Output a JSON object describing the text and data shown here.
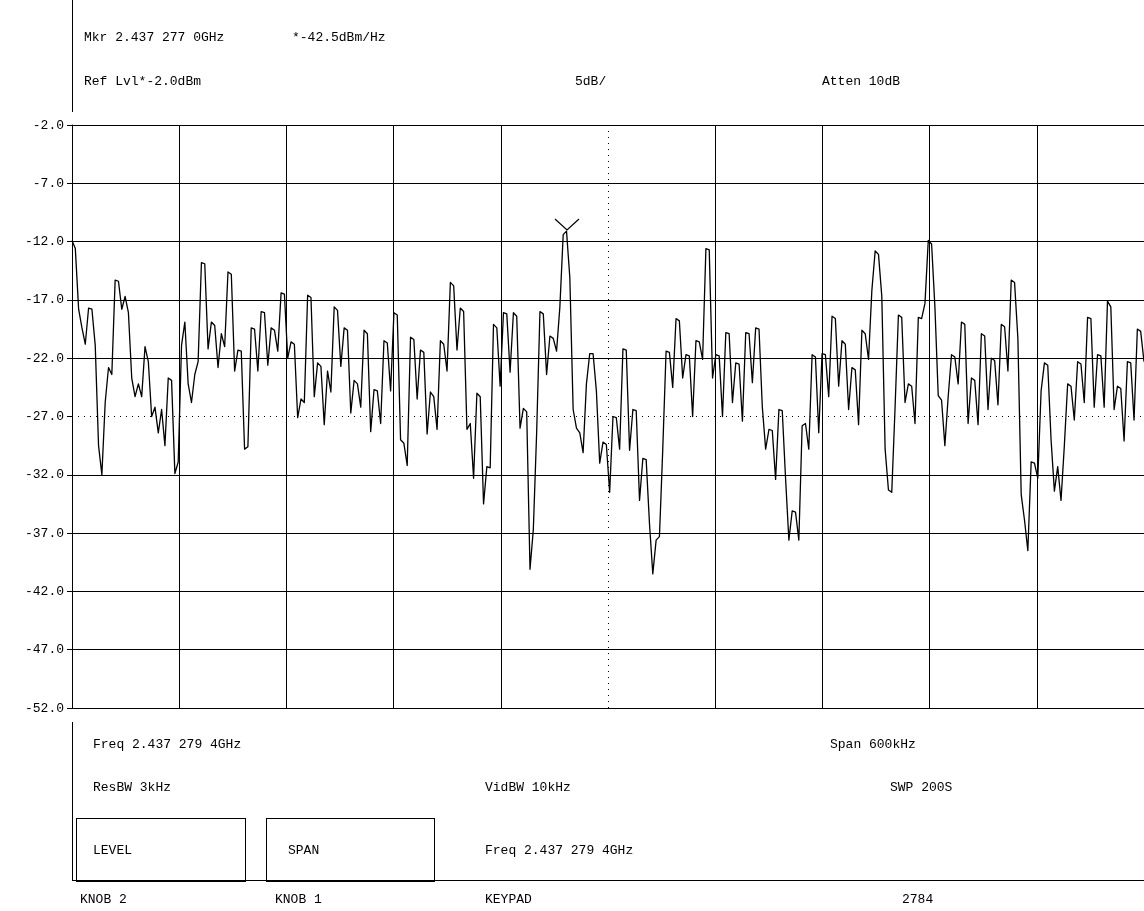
{
  "chart_data": {
    "type": "line",
    "values": [
      -11.9,
      -12.6,
      -17.8,
      -19.4,
      -20.8,
      -17.7,
      -17.8,
      -20.9,
      -29.5,
      -32,
      -25.8,
      -22.8,
      -23.4,
      -15.3,
      -15.4,
      -17.8,
      -16.7,
      -18.1,
      -23.7,
      -25.3,
      -24.2,
      -25.3,
      -21,
      -22.3,
      -27,
      -26.2,
      -28.4,
      -26.4,
      -29.5,
      -23.7,
      -23.9,
      -31.9,
      -30.9,
      -20.9,
      -18.9,
      -24.2,
      -25.8,
      -23.4,
      -22.3,
      -13.8,
      -13.9,
      -21.2,
      -18.9,
      -19.2,
      -22.8,
      -19.9,
      -21,
      -14.6,
      -14.8,
      -23.1,
      -21.3,
      -21.4,
      -29.8,
      -29.6,
      -19.4,
      -19.5,
      -23.1,
      -18,
      -18.1,
      -22.6,
      -19.4,
      -19.6,
      -21.4,
      -16.4,
      -16.5,
      -22,
      -20.6,
      -20.8,
      -27.1,
      -25.5,
      -25.8,
      -16.6,
      -16.8,
      -25.3,
      -22.4,
      -22.7,
      -27.7,
      -23.1,
      -24.9,
      -17.6,
      -17.9,
      -22.7,
      -19.4,
      -19.6,
      -26.7,
      -23.9,
      -24.2,
      -26.2,
      -19.6,
      -19.9,
      -28.3,
      -24.7,
      -24.8,
      -27.6,
      -20.5,
      -20.7,
      -24.8,
      -18.1,
      -18.3,
      -29,
      -29.3,
      -31.2,
      -20.2,
      -20.4,
      -25.5,
      -21.3,
      -21.5,
      -28.5,
      -24.9,
      -25.3,
      -28.1,
      -20.5,
      -20.8,
      -23.1,
      -15.5,
      -15.8,
      -21.3,
      -17.7,
      -18,
      -28.1,
      -27.6,
      -32.3,
      -25,
      -25.3,
      -34.5,
      -31.3,
      -31.4,
      -19.1,
      -19.4,
      -24.4,
      -18.1,
      -18.2,
      -23.2,
      -18.1,
      -18.4,
      -28,
      -26.3,
      -26.6,
      -40.1,
      -36.7,
      -28.4,
      -18,
      -18.2,
      -23.4,
      -20.1,
      -20.3,
      -21.4,
      -17.6,
      -11.4,
      -11.1,
      -15.1,
      -26.4,
      -28,
      -28.4,
      -30.1,
      -24.2,
      -21.6,
      -21.6,
      -24.8,
      -31,
      -29.2,
      -29.4,
      -33.5,
      -27,
      -27.1,
      -29.8,
      -21.2,
      -21.3,
      -29.9,
      -26.4,
      -26.5,
      -34.2,
      -30.6,
      -30.7,
      -36.2,
      -40.5,
      -37.6,
      -37.3,
      -29.8,
      -21.4,
      -21.5,
      -24.5,
      -18.6,
      -18.8,
      -23.7,
      -21.7,
      -21.8,
      -27,
      -20.5,
      -20.6,
      -22.1,
      -12.6,
      -12.7,
      -23.7,
      -21.7,
      -21.8,
      -27,
      -19.8,
      -19.9,
      -25.8,
      -22.4,
      -22.5,
      -27.4,
      -19.8,
      -19.9,
      -24.1,
      -19.4,
      -19.5,
      -26.2,
      -29.8,
      -28.1,
      -28.2,
      -32.4,
      -26.4,
      -26.5,
      -32.3,
      -37.6,
      -35.1,
      -35.2,
      -37.6,
      -27.8,
      -27.6,
      -29.8,
      -21.7,
      -21.9,
      -28.4,
      -21.6,
      -21.7,
      -25.3,
      -18.4,
      -18.6,
      -24.4,
      -20.5,
      -20.8,
      -26.4,
      -22.8,
      -23,
      -27.7,
      -19.6,
      -19.9,
      -22.1,
      -16.2,
      -12.8,
      -13.1,
      -16.7,
      -29.8,
      -33.3,
      -33.5,
      -26.2,
      -18.3,
      -18.5,
      -25.8,
      -24.2,
      -24.4,
      -27.6,
      -18.5,
      -18.6,
      -17.3,
      -11.9,
      -12.2,
      -17.6,
      -25.2,
      -25.6,
      -29.5,
      -25.3,
      -21.7,
      -21.9,
      -24.2,
      -18.9,
      -19.1,
      -27.6,
      -23.7,
      -23.9,
      -27.7,
      -19.9,
      -20.1,
      -26.4,
      -22,
      -22.2,
      -26,
      -19.1,
      -19.3,
      -23.1,
      -15.3,
      -15.5,
      -20.3,
      -33.7,
      -35.9,
      -38.5,
      -30.9,
      -31,
      -32.3,
      -24.8,
      -22.4,
      -22.6,
      -29,
      -33.4,
      -31.3,
      -34.2,
      -29.5,
      -24.2,
      -24.4,
      -27.3,
      -22.3,
      -22.5,
      -25.8,
      -18.5,
      -18.6,
      -26.2,
      -21.7,
      -21.8,
      -26.2,
      -17.1,
      -17.6,
      -26.4,
      -24.4,
      -24.6,
      -29.1,
      -22.3,
      -22.4,
      -27.3,
      -19.5,
      -19.7,
      -22.3
    ],
    "color": "#000000",
    "marker": "none",
    "line_style": "solid",
    "grid": true,
    "tick_labels": "y",
    "ylim": [
      -52,
      -2
    ],
    "yticks": [
      {
        "value": -2,
        "label": "-2.0"
      },
      {
        "value": -7,
        "label": "-7.0"
      },
      {
        "value": -12,
        "label": "-12.0"
      },
      {
        "value": -17,
        "label": "-17.0"
      },
      {
        "value": -22,
        "label": "-22.0"
      },
      {
        "value": -27,
        "label": "-27.0"
      },
      {
        "value": -32,
        "label": "-32.0"
      },
      {
        "value": -37,
        "label": "-37.0"
      },
      {
        "value": -42,
        "label": "-42.0"
      },
      {
        "value": -47,
        "label": "-47.0"
      },
      {
        "value": -52,
        "label": "-52.0"
      }
    ],
    "categories": [
      null,
      null,
      null,
      null,
      null,
      null,
      null,
      null,
      null,
      null,
      null,
      null,
      null,
      null,
      null,
      null,
      null,
      null,
      null,
      null,
      null,
      null,
      null,
      null,
      null,
      null,
      null,
      null,
      null,
      null,
      null,
      null,
      null,
      null,
      null,
      null,
      null,
      null,
      null,
      null,
      null,
      null,
      null,
      null,
      null,
      null,
      null,
      null,
      null,
      null,
      null,
      null,
      null,
      null,
      null,
      null,
      null,
      null,
      null,
      null,
      null,
      null,
      null,
      null,
      null,
      null,
      null,
      null,
      null,
      null,
      null,
      null,
      null,
      null,
      null,
      null,
      null,
      null,
      null,
      null,
      null,
      null,
      null,
      null,
      null,
      null,
      null,
      null,
      null,
      null,
      null,
      null,
      null,
      null,
      null,
      null,
      null,
      null,
      null,
      null,
      null,
      null,
      null,
      null,
      null,
      null,
      null,
      null,
      null,
      null,
      null,
      null,
      null,
      null,
      null,
      null,
      null,
      null,
      null,
      null,
      null,
      null,
      null,
      null,
      null,
      null,
      null,
      null,
      null,
      null,
      null,
      null,
      null,
      null,
      null,
      null,
      null,
      null,
      null,
      null,
      null,
      null,
      null,
      null,
      null,
      null,
      null,
      null,
      null,
      null,
      null,
      null,
      null,
      null,
      null,
      null,
      null,
      null,
      null,
      null,
      null,
      null,
      null,
      null,
      null,
      null,
      null,
      null,
      null,
      null,
      null,
      null,
      null,
      null,
      null,
      null,
      null,
      null,
      null,
      null,
      null,
      null,
      null,
      null,
      null,
      null,
      null,
      null,
      null,
      null,
      null,
      null,
      null,
      null,
      null,
      null,
      null,
      null,
      null,
      null,
      null,
      null,
      null,
      null,
      null,
      null,
      null,
      null,
      null,
      null,
      null,
      null,
      null,
      null,
      null,
      null,
      null,
      null,
      null,
      null,
      null,
      null,
      null,
      null,
      null,
      null,
      null,
      null,
      null,
      null,
      null,
      null,
      null,
      null,
      null,
      null,
      null,
      null,
      null,
      null,
      null,
      null,
      null,
      null,
      null,
      null,
      null,
      null,
      null,
      null,
      null,
      null,
      null,
      null,
      null,
      null,
      null,
      null,
      null,
      null,
      null,
      null,
      null,
      null,
      null,
      null,
      null,
      null,
      null,
      null,
      null,
      null,
      null,
      null,
      null,
      null,
      null,
      null,
      null,
      null,
      null,
      null,
      null,
      null,
      null,
      null,
      null,
      null,
      null,
      null,
      null,
      null,
      null,
      null,
      null,
      null,
      null,
      null,
      null,
      null,
      null,
      null,
      null,
      null,
      null,
      null,
      null,
      null,
      null,
      null,
      null,
      null,
      null,
      null,
      null,
      null,
      null,
      null,
      null,
      null,
      null,
      null,
      null,
      null
    ],
    "annotations": [
      "Mkr 2.437 277 0GHz",
      "*-42.5dBm/Hz",
      "Ref Lvl*-2.0dBm",
      "5dB/",
      "Atten 10dB",
      "Freq 2.437 279 4GHz",
      "Span 600kHz",
      "ResBW 3kHz",
      "VidBW 10kHz",
      "SWP 200S",
      "LEVEL",
      "SPAN",
      "Freq 2.437 279 4GHz",
      "KNOB 2",
      "KNOB 1",
      "KEYPAD",
      "2784"
    ]
  }
}
